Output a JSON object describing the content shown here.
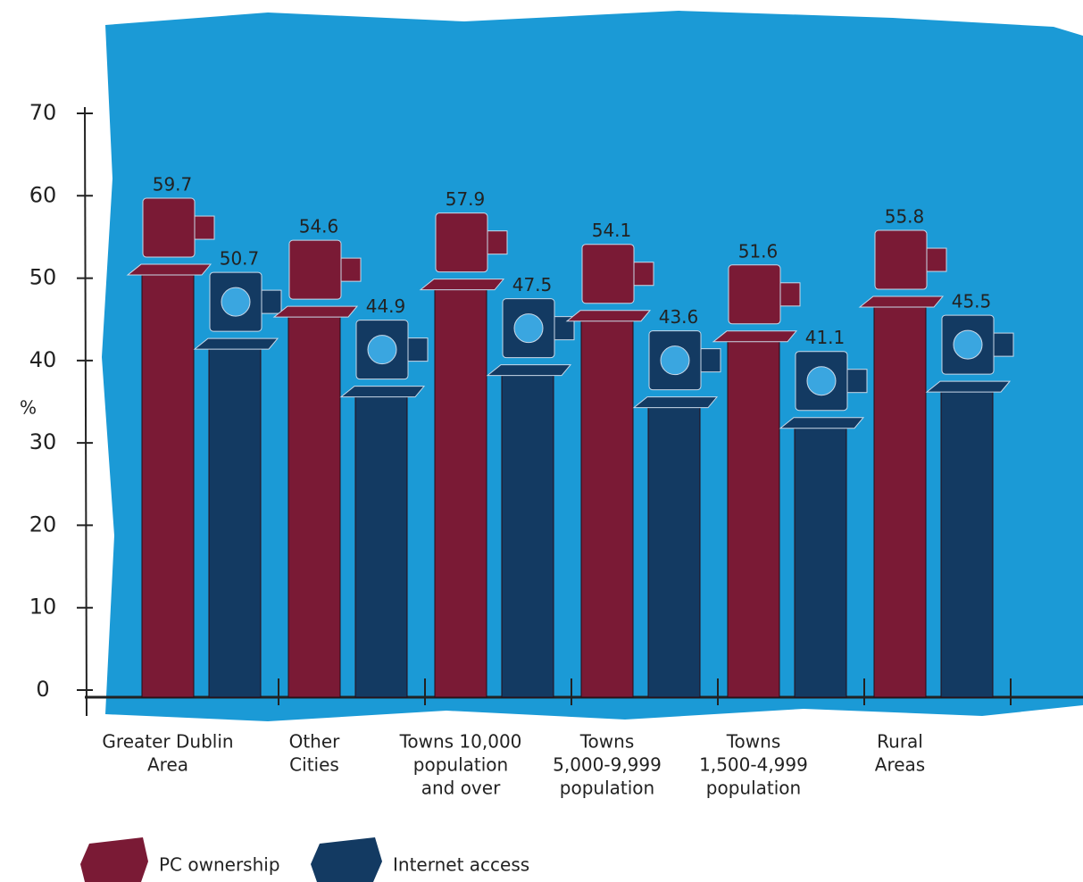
{
  "chart_data": {
    "type": "bar",
    "y_label": "%",
    "categories": [
      [
        "Greater Dublin",
        "Area"
      ],
      [
        "Other",
        "Cities"
      ],
      [
        "Towns 10,000",
        "population",
        "and over"
      ],
      [
        "Towns",
        "5,000-9,999",
        "population"
      ],
      [
        "Towns",
        "1,500-4,999",
        "population"
      ],
      [
        "Rural",
        "Areas"
      ]
    ],
    "series": [
      {
        "name": "PC ownership",
        "color": "#7a1a35",
        "values": [
          59.7,
          54.6,
          57.9,
          54.1,
          51.6,
          55.8
        ]
      },
      {
        "name": "Internet access",
        "color": "#133a62",
        "values": [
          50.7,
          44.9,
          47.5,
          43.6,
          41.1,
          45.5
        ]
      }
    ],
    "ylim": [
      0,
      70
    ],
    "yticks": [
      0,
      10,
      20,
      30,
      40,
      50,
      60,
      70
    ]
  }
}
